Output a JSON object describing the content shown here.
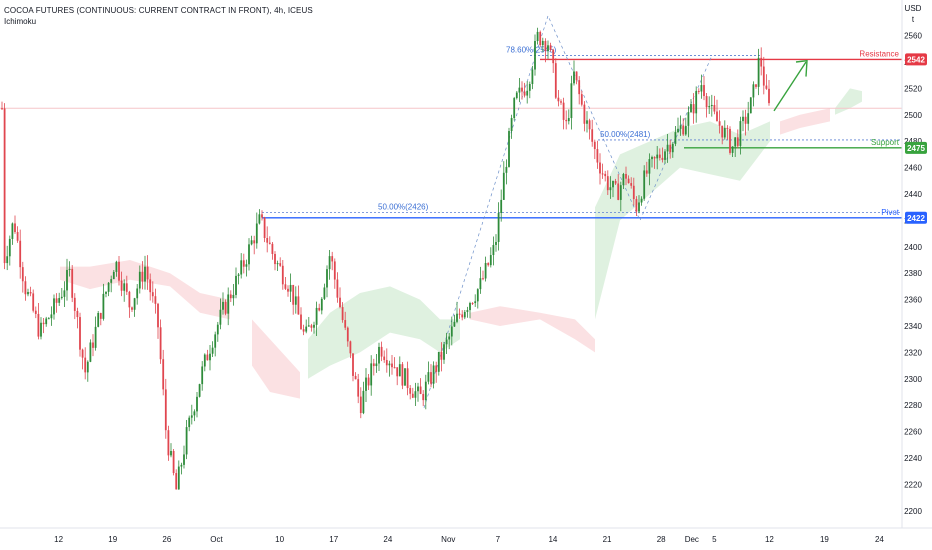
{
  "header": {
    "title": "COCOA FUTURES (CONTINUOUS: CURRENT CONTRACT IN FRONT), 4h, ICEUS",
    "indicator": "Ichimoku"
  },
  "axis": {
    "currency": "USD",
    "currency_sub": "t"
  },
  "chart_data": {
    "type": "candlestick",
    "y_ticks": [
      2200,
      2220,
      2240,
      2260,
      2280,
      2300,
      2320,
      2340,
      2360,
      2380,
      2400,
      2420,
      2440,
      2460,
      2480,
      2500,
      2520,
      2540,
      2560
    ],
    "ylim": [
      2187,
      2587
    ],
    "x_ticks": [
      {
        "label": "12",
        "pos": 0.065
      },
      {
        "label": "19",
        "pos": 0.125
      },
      {
        "label": "26",
        "pos": 0.185
      },
      {
        "label": "Oct",
        "pos": 0.24
      },
      {
        "label": "10",
        "pos": 0.31
      },
      {
        "label": "17",
        "pos": 0.37
      },
      {
        "label": "24",
        "pos": 0.43
      },
      {
        "label": "Nov",
        "pos": 0.497
      },
      {
        "label": "7",
        "pos": 0.552
      },
      {
        "label": "14",
        "pos": 0.613
      },
      {
        "label": "21",
        "pos": 0.673
      },
      {
        "label": "28",
        "pos": 0.733
      },
      {
        "label": "Dec",
        "pos": 0.767
      },
      {
        "label": "5",
        "pos": 0.792
      },
      {
        "label": "12",
        "pos": 0.853
      },
      {
        "label": "19",
        "pos": 0.914
      },
      {
        "label": "24",
        "pos": 0.975
      }
    ],
    "levels": [
      {
        "name": "Resistance",
        "value": 2542,
        "badge": "2542",
        "color": "#e53945"
      },
      {
        "name": "Support",
        "value": 2475,
        "badge": "2475",
        "color": "#38a33e"
      },
      {
        "name": "Pivot",
        "value": 2422,
        "badge": "2422",
        "color": "#2962ff"
      }
    ],
    "fib_labels": [
      {
        "text": "78.60%(2545)",
        "value": 2545
      },
      {
        "text": "50.00%(2481)",
        "value": 2481
      },
      {
        "text": "50.00%(2426)",
        "value": 2426
      }
    ],
    "up_color": "#2e8b3a",
    "down_color": "#e0464f",
    "cloud_green": "#dff1e0",
    "cloud_red": "#fbe1e3",
    "last_price_line": 2505
  }
}
